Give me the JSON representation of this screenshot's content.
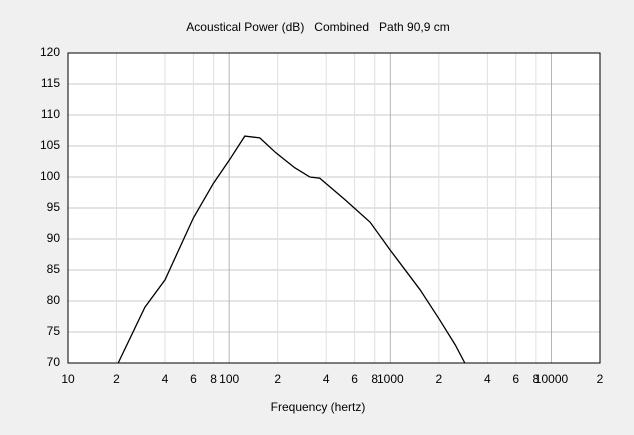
{
  "chart_data": {
    "type": "line",
    "title": "Acoustical Power (dB)   Combined   Path 90,9 cm",
    "xlabel": "Frequency (hertz)",
    "xscale": "log",
    "grid": true,
    "xlim": [
      10,
      20000
    ],
    "ylim": [
      70,
      120
    ],
    "xticks": [
      10,
      {
        "value": 20,
        "label": "2"
      },
      {
        "value": 40,
        "label": "4"
      },
      {
        "value": 60,
        "label": "6"
      },
      {
        "value": 80,
        "label": "8"
      },
      100,
      {
        "value": 200,
        "label": "2"
      },
      {
        "value": 400,
        "label": "4"
      },
      {
        "value": 600,
        "label": "6"
      },
      {
        "value": 800,
        "label": "8"
      },
      1000,
      {
        "value": 2000,
        "label": "2"
      },
      {
        "value": 4000,
        "label": "4"
      },
      {
        "value": 6000,
        "label": "6"
      },
      {
        "value": 8000,
        "label": "8"
      },
      10000,
      {
        "value": 20000,
        "label": "2"
      }
    ],
    "yticks": [
      70,
      75,
      80,
      85,
      90,
      95,
      100,
      105,
      110,
      115,
      120
    ],
    "x": [
      20.5,
      30,
      40,
      60,
      80,
      100,
      125,
      155,
      195,
      255,
      317,
      365,
      410,
      525,
      750,
      1000,
      1150,
      1530,
      2030,
      2530,
      2900
    ],
    "series": [
      {
        "color": "#000000",
        "values": [
          70,
          79.0,
          83.4,
          93.4,
          99.0,
          102.7,
          106.6,
          106.3,
          103.9,
          101.5,
          100.0,
          99.8,
          98.7,
          96.3,
          92.7,
          88.2,
          86.1,
          81.8,
          76.9,
          72.9,
          70
        ]
      }
    ]
  }
}
